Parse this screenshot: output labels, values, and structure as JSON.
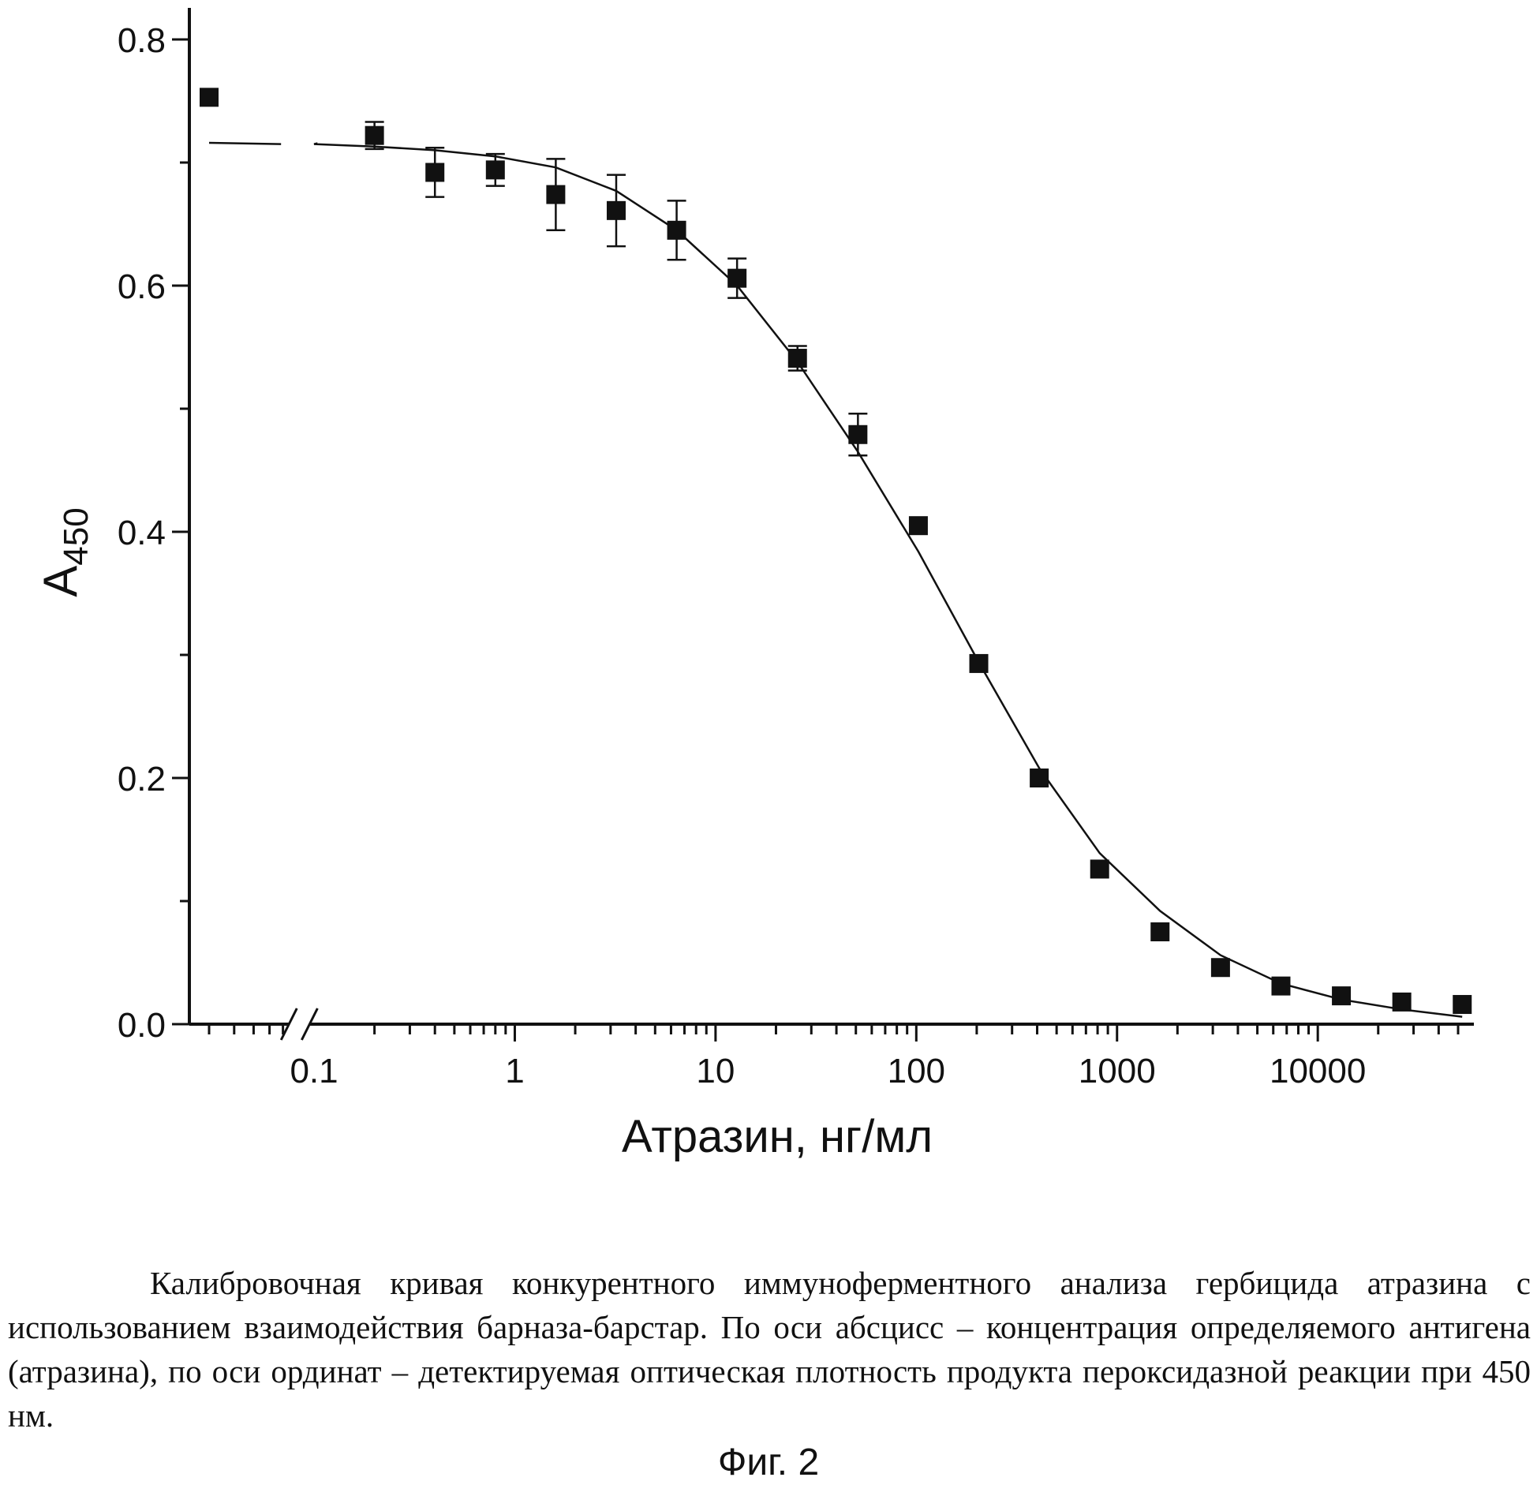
{
  "chart_data": {
    "type": "scatter",
    "xlabel": "Атразин, нг/мл",
    "ylabel_main": "A",
    "ylabel_sub": "450",
    "x_scale": "log",
    "xlim": [
      0.03,
      50000
    ],
    "ylim": [
      0,
      0.8
    ],
    "x_axis_break": true,
    "grid": false,
    "x_ticks": [
      0.1,
      1,
      10,
      100,
      1000,
      10000
    ],
    "x_tick_labels": [
      "0.1",
      "1",
      "10",
      "100",
      "1000",
      "10000"
    ],
    "y_ticks": [
      0,
      0.2,
      0.4,
      0.6,
      0.8
    ],
    "y_tick_labels": [
      "0.0",
      "0.2",
      "0.4",
      "0.6",
      "0.8"
    ],
    "points": [
      {
        "x": 0.03,
        "y": 0.753,
        "err": 0
      },
      {
        "x": 0.2,
        "y": 0.722,
        "err": 0.011
      },
      {
        "x": 0.4,
        "y": 0.692,
        "err": 0.02
      },
      {
        "x": 0.8,
        "y": 0.694,
        "err": 0.013
      },
      {
        "x": 1.6,
        "y": 0.674,
        "err": 0.029
      },
      {
        "x": 3.2,
        "y": 0.661,
        "err": 0.029
      },
      {
        "x": 6.4,
        "y": 0.645,
        "err": 0.024
      },
      {
        "x": 12.8,
        "y": 0.606,
        "err": 0.016
      },
      {
        "x": 25.6,
        "y": 0.541,
        "err": 0.01
      },
      {
        "x": 51.2,
        "y": 0.479,
        "err": 0.017
      },
      {
        "x": 102.4,
        "y": 0.405,
        "err": 0
      },
      {
        "x": 204.8,
        "y": 0.293,
        "err": 0
      },
      {
        "x": 409.6,
        "y": 0.2,
        "err": 0
      },
      {
        "x": 819.2,
        "y": 0.126,
        "err": 0
      },
      {
        "x": 1638,
        "y": 0.075,
        "err": 0
      },
      {
        "x": 3277,
        "y": 0.046,
        "err": 0
      },
      {
        "x": 6554,
        "y": 0.031,
        "err": 0
      },
      {
        "x": 13107,
        "y": 0.023,
        "err": 0
      },
      {
        "x": 26214,
        "y": 0.018,
        "err": 0
      },
      {
        "x": 52429,
        "y": 0.016,
        "err": 0
      }
    ],
    "fit_curve": [
      {
        "x": 0.03,
        "y": 0.716
      },
      {
        "x": 0.1,
        "y": 0.715
      },
      {
        "x": 0.2,
        "y": 0.713
      },
      {
        "x": 0.4,
        "y": 0.71
      },
      {
        "x": 0.8,
        "y": 0.705
      },
      {
        "x": 1.6,
        "y": 0.696
      },
      {
        "x": 3.2,
        "y": 0.677
      },
      {
        "x": 6.4,
        "y": 0.645
      },
      {
        "x": 12.8,
        "y": 0.6
      },
      {
        "x": 25.6,
        "y": 0.538
      },
      {
        "x": 51.2,
        "y": 0.465
      },
      {
        "x": 102.4,
        "y": 0.384
      },
      {
        "x": 204.8,
        "y": 0.294
      },
      {
        "x": 409.6,
        "y": 0.208
      },
      {
        "x": 819.2,
        "y": 0.139
      },
      {
        "x": 1638,
        "y": 0.092
      },
      {
        "x": 3277,
        "y": 0.056
      },
      {
        "x": 6554,
        "y": 0.033
      },
      {
        "x": 13107,
        "y": 0.02
      },
      {
        "x": 26214,
        "y": 0.012
      },
      {
        "x": 52429,
        "y": 0.006
      }
    ]
  },
  "caption": "Калибровочная кривая конкурентного иммуноферментного анализа гербицида атразина с использованием взаимодействия барназа-барстар. По оси абсцисс – концентрация определяемого антигена (атразина), по оси ординат – детектируемая оптическая плотность продукта пероксидазной реакции при 450 нм.",
  "figure_label": "Фиг. 2"
}
